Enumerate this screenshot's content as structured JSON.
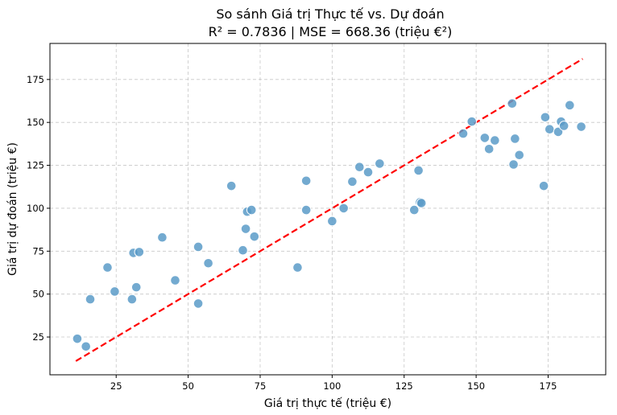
{
  "chart_data": {
    "type": "scatter",
    "title": "So sánh Giá trị Thực tế vs. Dự đoán",
    "subtitle": "R² = 0.7836 | MSE = 668.36 (triệu €²)",
    "xlabel": "Giá trị thực tế (triệu €)",
    "ylabel": "Giá trị dự đoán (triệu €)",
    "xlim": [
      2,
      195
    ],
    "ylim": [
      3,
      196
    ],
    "xticks": [
      25,
      50,
      75,
      100,
      125,
      150,
      175
    ],
    "yticks": [
      25,
      50,
      75,
      100,
      125,
      150,
      175
    ],
    "grid": true,
    "colors": {
      "points": "#5b9bc8",
      "point_edge": "#ffffff",
      "ideal_line": "#ff0000"
    },
    "ideal_line": {
      "x": [
        11,
        187
      ],
      "y": [
        11,
        187
      ],
      "style": "dashed"
    },
    "points": {
      "x": [
        11.5,
        14.5,
        16,
        22,
        24.5,
        30.5,
        31,
        32,
        33,
        41,
        45.5,
        53.5,
        53.5,
        57,
        65,
        69,
        70,
        70.5,
        72,
        73,
        88,
        91,
        91,
        100,
        104,
        107,
        109.5,
        112.5,
        116.5,
        128.5,
        130,
        130.5,
        131,
        145.5,
        148.5,
        153,
        154.5,
        156.5,
        162.5,
        163,
        163.5,
        165,
        173.5,
        174,
        175.5,
        178.5,
        179.5,
        180.5,
        182.5,
        186.5
      ],
      "y": [
        24,
        19.5,
        47,
        65.5,
        51.5,
        47,
        74,
        54,
        74.5,
        83,
        58,
        77.5,
        44.5,
        68,
        113,
        75.5,
        88,
        98,
        99,
        83.5,
        65.5,
        99,
        116,
        92.5,
        100,
        115.5,
        124,
        121,
        126,
        99,
        122,
        103.5,
        103,
        143.5,
        150.5,
        141,
        134.5,
        139.5,
        161,
        125.5,
        140.5,
        131,
        113,
        153,
        146,
        144.5,
        150.5,
        148,
        160,
        147.5
      ]
    }
  }
}
